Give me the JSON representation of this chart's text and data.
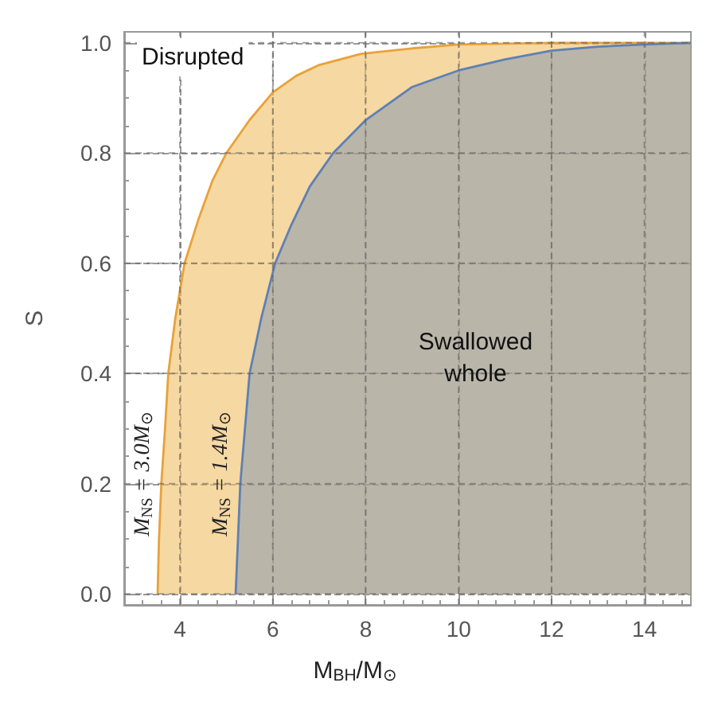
{
  "chart_data": {
    "type": "area",
    "xlabel": "M$_{BH}$/M$_{⊙}$",
    "ylabel": "S",
    "xlim": [
      2.8,
      15
    ],
    "ylim": [
      -0.02,
      1.02
    ],
    "xticks": [
      4,
      6,
      8,
      10,
      12,
      14
    ],
    "yticks": [
      {
        "value": 0,
        "label": "0.0"
      },
      {
        "value": 0.2,
        "label": "0.2"
      },
      {
        "value": 0.4,
        "label": "0.4"
      },
      {
        "value": 0.6,
        "label": "0.6"
      },
      {
        "value": 0.8,
        "label": "0.8"
      },
      {
        "value": 1,
        "label": "1.0"
      }
    ],
    "grid": true,
    "legend": false,
    "marker": "none",
    "line_style": "solid",
    "series": [
      {
        "name": "M$_{NS}$ = 3.0M$_{⊙}$",
        "color": "#e8a23a",
        "x": [
          3.52,
          3.55,
          3.6,
          3.68,
          3.75,
          3.9,
          4.1,
          4.4,
          4.7,
          5.0,
          5.5,
          6.0,
          6.5,
          7.0,
          7.9,
          9,
          10,
          12,
          15
        ],
        "values": [
          0,
          0.1,
          0.2,
          0.3,
          0.4,
          0.5,
          0.6,
          0.68,
          0.75,
          0.8,
          0.86,
          0.91,
          0.94,
          0.96,
          0.98,
          0.99,
          0.997,
          1,
          1
        ]
      },
      {
        "name": "M$_{NS}$ = 1.4M$_{⊙}$",
        "color": "#5e81b5",
        "x": [
          5.2,
          5.25,
          5.3,
          5.4,
          5.5,
          5.75,
          6.05,
          6.4,
          6.8,
          7.3,
          8,
          9,
          10,
          11,
          12,
          13,
          14,
          15
        ],
        "values": [
          0,
          0.1,
          0.2,
          0.3,
          0.4,
          0.5,
          0.6,
          0.67,
          0.74,
          0.8,
          0.86,
          0.92,
          0.95,
          0.97,
          0.986,
          0.993,
          0.997,
          1
        ]
      }
    ],
    "annotations": [
      "Disrupted",
      "Swallowed whole"
    ]
  }
}
